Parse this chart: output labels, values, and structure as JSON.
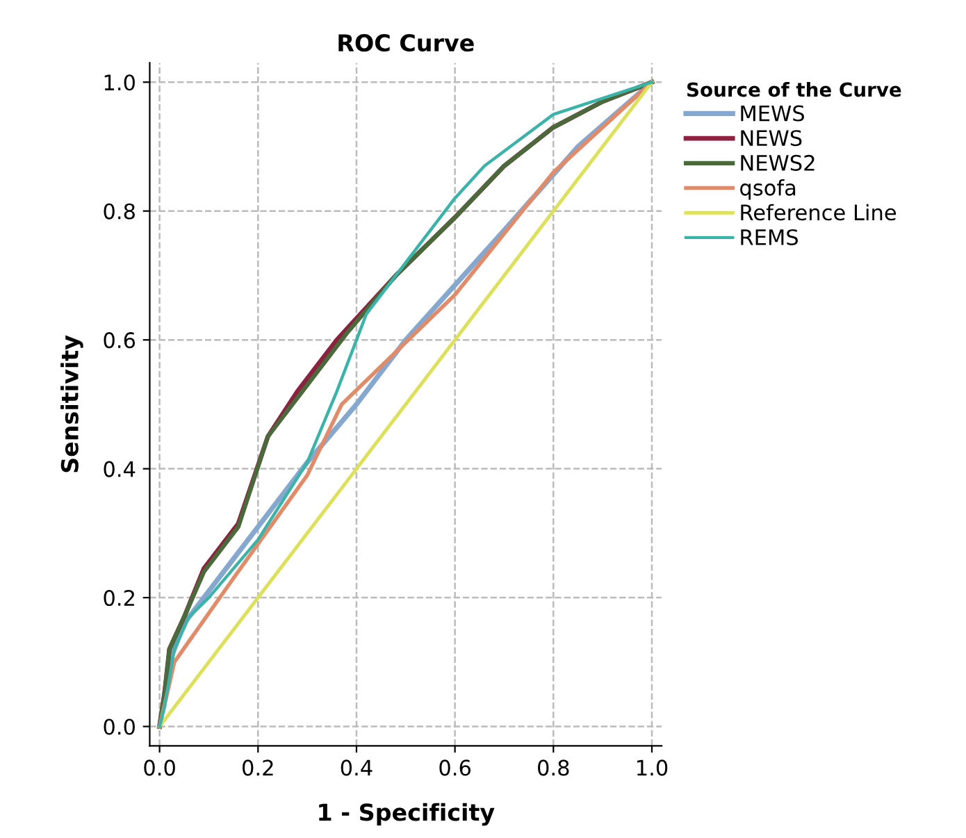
{
  "chart_data": {
    "type": "line",
    "title": "ROC Curve",
    "xlabel": "1 - Specificity",
    "ylabel": "Sensitivity",
    "legend_title": "Source of the Curve",
    "xlim": [
      -0.02,
      1.02
    ],
    "ylim": [
      -0.03,
      1.03
    ],
    "xticks": [
      {
        "value": 0,
        "label": "0.0"
      },
      0.2,
      0.4,
      0.6,
      0.8,
      {
        "value": 1,
        "label": "1.0"
      }
    ],
    "yticks": [
      {
        "value": 0,
        "label": "0.0"
      },
      0.2,
      0.4,
      0.6,
      0.8,
      {
        "value": 1,
        "label": "1.0"
      }
    ],
    "grid": true,
    "legend": "right",
    "marker": "none",
    "line_style": "solid",
    "series": [
      {
        "name": "MEWS",
        "color": "#86a8cf",
        "x": [
          0,
          0.02,
          0.05,
          0.1,
          0.2,
          0.3,
          0.4,
          0.5,
          0.7,
          0.85,
          1
        ],
        "values": [
          0,
          0.1,
          0.16,
          0.21,
          0.31,
          0.41,
          0.5,
          0.6,
          0.77,
          0.9,
          1
        ]
      },
      {
        "name": "NEWS",
        "color": "#8b2340",
        "x": [
          0,
          0.01,
          0.02,
          0.05,
          0.09,
          0.16,
          0.22,
          0.28,
          0.36,
          0.48,
          0.6,
          0.7,
          0.8,
          0.9,
          1
        ],
        "values": [
          0,
          0.05,
          0.12,
          0.17,
          0.245,
          0.315,
          0.45,
          0.52,
          0.6,
          0.7,
          0.79,
          0.87,
          0.93,
          0.97,
          1
        ]
      },
      {
        "name": "NEWS2",
        "color": "#4a6a3c",
        "x": [
          0,
          0.01,
          0.02,
          0.05,
          0.09,
          0.16,
          0.22,
          0.3,
          0.38,
          0.48,
          0.6,
          0.7,
          0.8,
          0.9,
          1
        ],
        "values": [
          0,
          0.05,
          0.12,
          0.17,
          0.24,
          0.31,
          0.45,
          0.53,
          0.61,
          0.7,
          0.79,
          0.87,
          0.93,
          0.97,
          1
        ]
      },
      {
        "name": "qsofa",
        "color": "#e08c6a",
        "x": [
          0,
          0.03,
          0.15,
          0.3,
          0.37,
          0.6,
          0.8,
          1
        ],
        "values": [
          0,
          0.1,
          0.23,
          0.39,
          0.5,
          0.67,
          0.86,
          1
        ]
      },
      {
        "name": "Reference Line",
        "color": "#dde05a",
        "x": [
          0,
          1
        ],
        "values": [
          0,
          1
        ]
      },
      {
        "name": "REMS",
        "color": "#3bb3a8",
        "x": [
          0,
          0.01,
          0.03,
          0.06,
          0.1,
          0.2,
          0.3,
          0.36,
          0.42,
          0.48,
          0.6,
          0.66,
          0.8,
          1
        ],
        "values": [
          0,
          0.03,
          0.12,
          0.17,
          0.2,
          0.29,
          0.41,
          0.52,
          0.64,
          0.7,
          0.82,
          0.87,
          0.95,
          1
        ]
      }
    ]
  }
}
